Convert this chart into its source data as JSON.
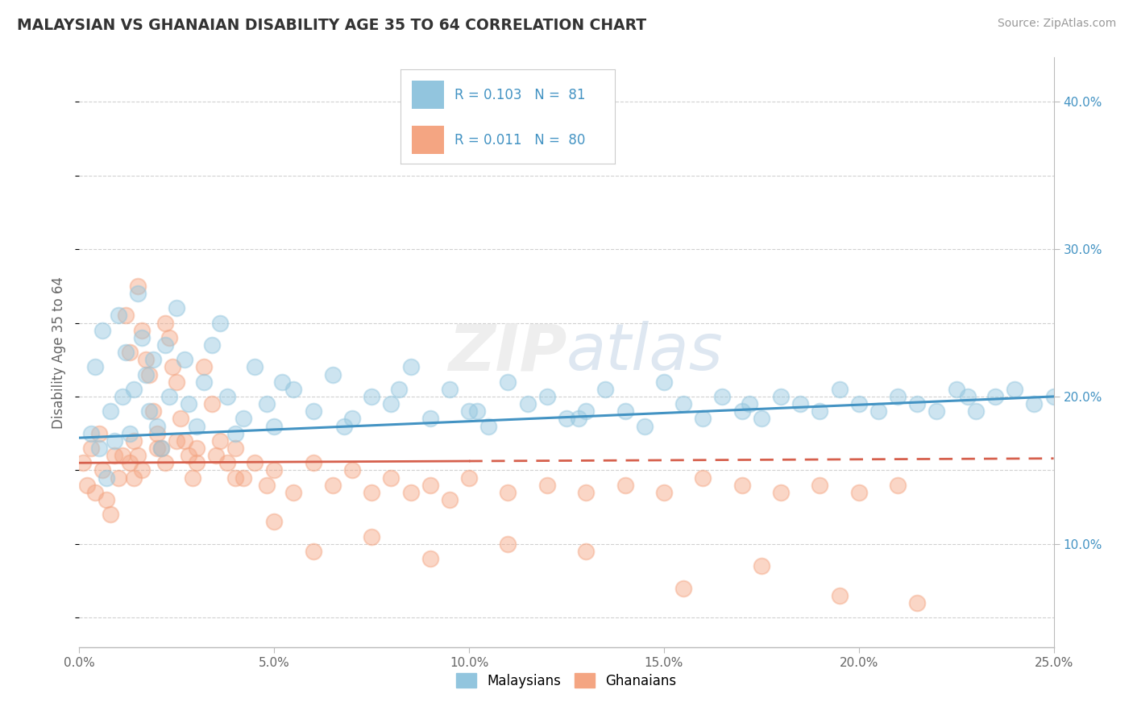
{
  "title": "MALAYSIAN VS GHANAIAN DISABILITY AGE 35 TO 64 CORRELATION CHART",
  "source": "Source: ZipAtlas.com",
  "ylabel": "Disability Age 35 to 64",
  "x_min": 0.0,
  "x_max": 25.0,
  "y_min": 3.0,
  "y_max": 43.0,
  "legend_r1": "R = 0.103",
  "legend_n1": "N =  81",
  "legend_r2": "R = 0.011",
  "legend_n2": "N =  80",
  "legend_label1": "Malaysians",
  "legend_label2": "Ghanaians",
  "blue_color": "#92c5de",
  "pink_color": "#f4a582",
  "blue_line_color": "#4393c3",
  "pink_line_color": "#d6604d",
  "title_color": "#333333",
  "source_color": "#999999",
  "legend_r_color": "#4393c3",
  "background_color": "#ffffff",
  "grid_color": "#cccccc",
  "malaysian_x": [
    0.3,
    0.4,
    0.5,
    0.6,
    0.7,
    0.8,
    0.9,
    1.0,
    1.1,
    1.2,
    1.3,
    1.4,
    1.5,
    1.6,
    1.7,
    1.8,
    1.9,
    2.0,
    2.1,
    2.2,
    2.3,
    2.5,
    2.7,
    2.8,
    3.0,
    3.2,
    3.4,
    3.6,
    3.8,
    4.2,
    4.5,
    4.8,
    5.0,
    5.5,
    6.0,
    6.5,
    7.0,
    7.5,
    8.0,
    8.5,
    9.0,
    9.5,
    10.0,
    10.5,
    11.0,
    11.5,
    12.0,
    12.5,
    13.0,
    13.5,
    14.0,
    14.5,
    15.0,
    15.5,
    16.0,
    16.5,
    17.0,
    17.5,
    18.0,
    18.5,
    19.0,
    19.5,
    20.0,
    20.5,
    21.0,
    21.5,
    22.0,
    22.5,
    23.0,
    23.5,
    24.0,
    24.5,
    25.0,
    4.0,
    5.2,
    6.8,
    8.2,
    10.2,
    12.8,
    17.2,
    22.8
  ],
  "malaysian_y": [
    17.5,
    22.0,
    16.5,
    24.5,
    14.5,
    19.0,
    17.0,
    25.5,
    20.0,
    23.0,
    17.5,
    20.5,
    27.0,
    24.0,
    21.5,
    19.0,
    22.5,
    18.0,
    16.5,
    23.5,
    20.0,
    26.0,
    22.5,
    19.5,
    18.0,
    21.0,
    23.5,
    25.0,
    20.0,
    18.5,
    22.0,
    19.5,
    18.0,
    20.5,
    19.0,
    21.5,
    18.5,
    20.0,
    19.5,
    22.0,
    18.5,
    20.5,
    19.0,
    18.0,
    21.0,
    19.5,
    20.0,
    18.5,
    19.0,
    20.5,
    19.0,
    18.0,
    21.0,
    19.5,
    18.5,
    20.0,
    19.0,
    18.5,
    20.0,
    19.5,
    19.0,
    20.5,
    19.5,
    19.0,
    20.0,
    19.5,
    19.0,
    20.5,
    19.0,
    20.0,
    20.5,
    19.5,
    20.0,
    17.5,
    21.0,
    18.0,
    20.5,
    19.0,
    18.5,
    19.5,
    20.0
  ],
  "ghanaian_x": [
    0.1,
    0.2,
    0.3,
    0.4,
    0.5,
    0.6,
    0.7,
    0.8,
    0.9,
    1.0,
    1.1,
    1.2,
    1.3,
    1.4,
    1.5,
    1.6,
    1.7,
    1.8,
    1.9,
    2.0,
    2.1,
    2.2,
    2.3,
    2.4,
    2.5,
    2.6,
    2.7,
    2.8,
    2.9,
    3.0,
    3.2,
    3.4,
    3.6,
    3.8,
    4.0,
    4.2,
    4.5,
    4.8,
    5.0,
    5.5,
    6.0,
    6.5,
    7.0,
    7.5,
    8.0,
    8.5,
    9.0,
    9.5,
    10.0,
    11.0,
    12.0,
    13.0,
    14.0,
    15.0,
    16.0,
    17.0,
    18.0,
    19.0,
    20.0,
    21.0,
    1.3,
    1.4,
    1.5,
    1.6,
    2.0,
    2.2,
    2.5,
    3.0,
    3.5,
    4.0,
    5.0,
    6.0,
    7.5,
    9.0,
    11.0,
    13.0,
    15.5,
    17.5,
    19.5,
    21.5
  ],
  "ghanaian_y": [
    15.5,
    14.0,
    16.5,
    13.5,
    17.5,
    15.0,
    13.0,
    12.0,
    16.0,
    14.5,
    16.0,
    25.5,
    23.0,
    17.0,
    27.5,
    24.5,
    22.5,
    21.5,
    19.0,
    17.5,
    16.5,
    25.0,
    24.0,
    22.0,
    21.0,
    18.5,
    17.0,
    16.0,
    14.5,
    16.5,
    22.0,
    19.5,
    17.0,
    15.5,
    16.5,
    14.5,
    15.5,
    14.0,
    15.0,
    13.5,
    15.5,
    14.0,
    15.0,
    13.5,
    14.5,
    13.5,
    14.0,
    13.0,
    14.5,
    13.5,
    14.0,
    13.5,
    14.0,
    13.5,
    14.5,
    14.0,
    13.5,
    14.0,
    13.5,
    14.0,
    15.5,
    14.5,
    16.0,
    15.0,
    16.5,
    15.5,
    17.0,
    15.5,
    16.0,
    14.5,
    11.5,
    9.5,
    10.5,
    9.0,
    10.0,
    9.5,
    7.0,
    8.5,
    6.5,
    6.0
  ]
}
